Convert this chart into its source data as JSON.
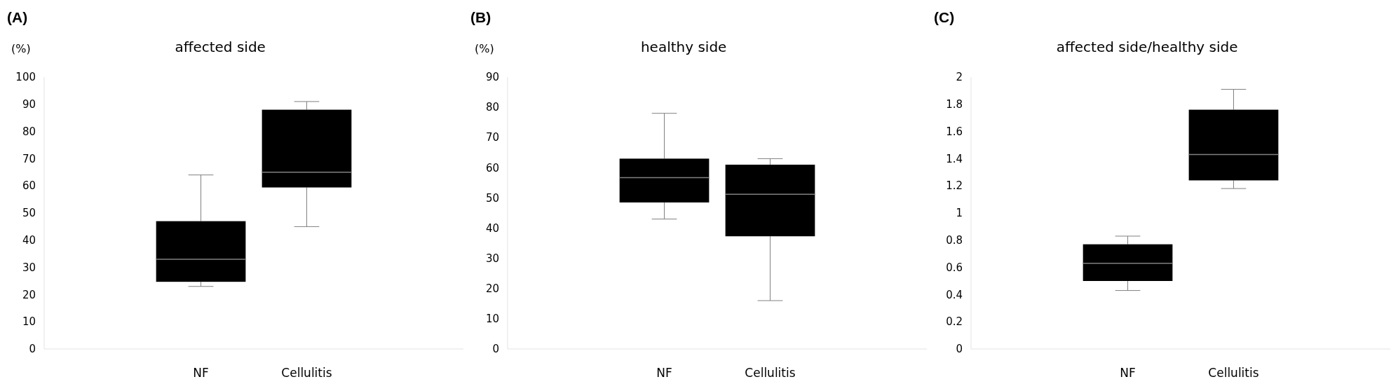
{
  "chart_data": [
    {
      "type": "box",
      "title": "affected side",
      "ylabel": "(%)",
      "annotations": [
        "(A)"
      ],
      "categories": [
        "NF",
        "Cellulitis"
      ],
      "ylim": [
        0,
        100
      ],
      "yticks": [
        0,
        10,
        20,
        30,
        40,
        50,
        60,
        70,
        80,
        90,
        100
      ],
      "series": [
        {
          "color": "#000000",
          "boxes": [
            {
              "low": 23,
              "q1": 24.7,
              "median": 33,
              "q3": 47,
              "high": 64
            },
            {
              "low": 45,
              "q1": 59.4,
              "median": 65,
              "q3": 88,
              "high": 91
            }
          ]
        }
      ]
    },
    {
      "type": "box",
      "title": "healthy side",
      "ylabel": "(%)",
      "annotations": [
        "(B)"
      ],
      "categories": [
        "NF",
        "Cellulitis"
      ],
      "ylim": [
        0,
        90
      ],
      "yticks": [
        0,
        10,
        20,
        30,
        40,
        50,
        60,
        70,
        80,
        90
      ],
      "series": [
        {
          "color": "#000000",
          "boxes": [
            {
              "low": 43,
              "q1": 48.5,
              "median": 56.7,
              "q3": 63,
              "high": 78
            },
            {
              "low": 16,
              "q1": 37.3,
              "median": 51.2,
              "q3": 61,
              "high": 63
            }
          ]
        }
      ]
    },
    {
      "type": "box",
      "title": "affected side/healthy side",
      "annotations": [
        "(C)"
      ],
      "categories": [
        "NF",
        "Cellulitis"
      ],
      "ylim": [
        0,
        2
      ],
      "yticks": [
        0,
        0.2,
        0.4,
        0.6,
        0.8,
        1,
        1.2,
        1.4,
        1.6,
        1.8,
        2
      ],
      "series": [
        {
          "color": "#000000",
          "boxes": [
            {
              "low": 0.43,
              "q1": 0.5,
              "median": 0.63,
              "q3": 0.77,
              "high": 0.83
            },
            {
              "low": 1.18,
              "q1": 1.24,
              "median": 1.43,
              "q3": 1.76,
              "high": 1.91
            }
          ]
        }
      ]
    }
  ]
}
